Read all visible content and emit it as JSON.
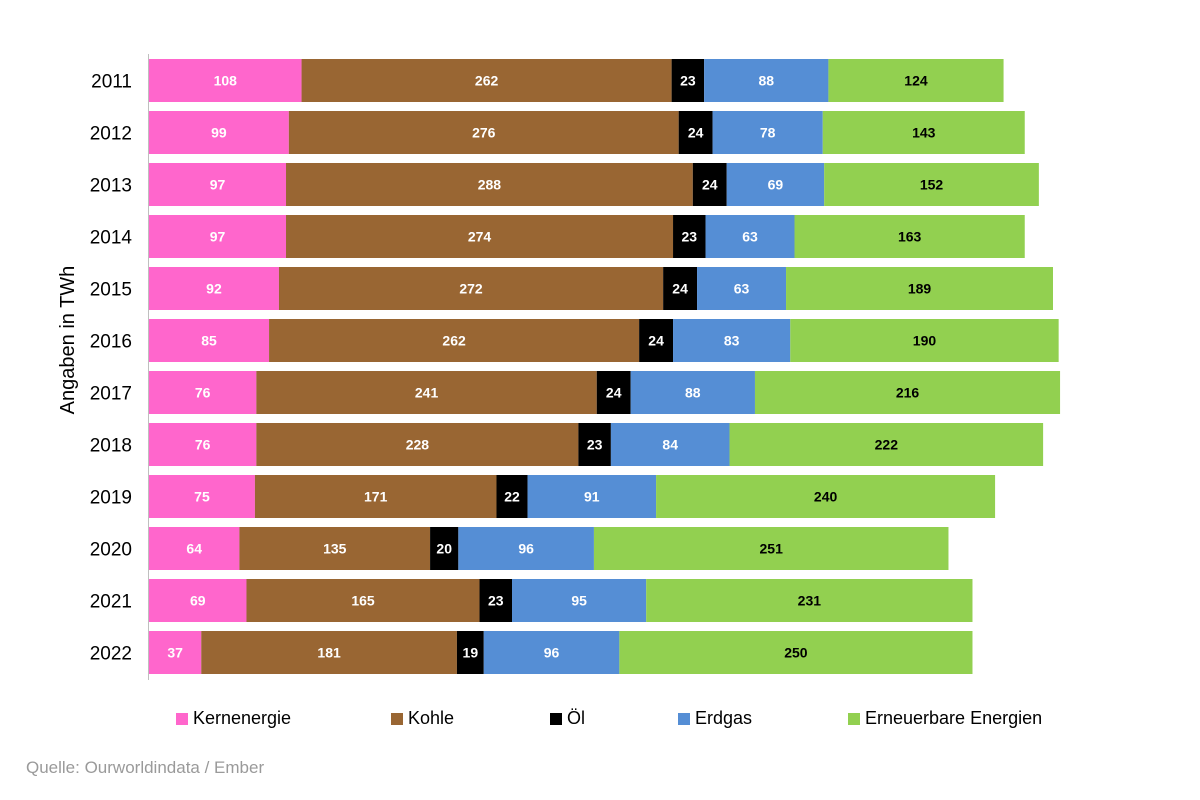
{
  "chart_data": {
    "type": "bar",
    "orientation": "horizontal",
    "stacked": true,
    "ylabel": "Angaben in  TWh",
    "categories": [
      "2011",
      "2012",
      "2013",
      "2014",
      "2015",
      "2016",
      "2017",
      "2018",
      "2019",
      "2020",
      "2021",
      "2022"
    ],
    "series": [
      {
        "name": "Kernenergie",
        "color": "#ff66cc",
        "label_color": "#ffffff",
        "values": [
          108,
          99,
          97,
          97,
          92,
          85,
          76,
          76,
          75,
          64,
          69,
          37
        ]
      },
      {
        "name": "Kohle",
        "color": "#996633",
        "label_color": "#ffffff",
        "values": [
          262,
          276,
          288,
          274,
          272,
          262,
          241,
          228,
          171,
          135,
          165,
          181
        ]
      },
      {
        "name": "Öl",
        "color": "#000000",
        "label_color": "#ffffff",
        "values": [
          23,
          24,
          24,
          23,
          24,
          24,
          24,
          23,
          22,
          20,
          23,
          19
        ]
      },
      {
        "name": "Erdgas",
        "color": "#558ed5",
        "label_color": "#ffffff",
        "values": [
          88,
          78,
          69,
          63,
          63,
          83,
          88,
          84,
          91,
          96,
          95,
          96
        ]
      },
      {
        "name": "Erneuerbare Energien",
        "color": "#92d050",
        "label_color": "#000000",
        "values": [
          124,
          143,
          152,
          163,
          189,
          190,
          216,
          222,
          240,
          251,
          231,
          250
        ]
      }
    ],
    "legend_position": "bottom",
    "grid": false
  },
  "source": "Quelle: Ourworldindata / Ember"
}
